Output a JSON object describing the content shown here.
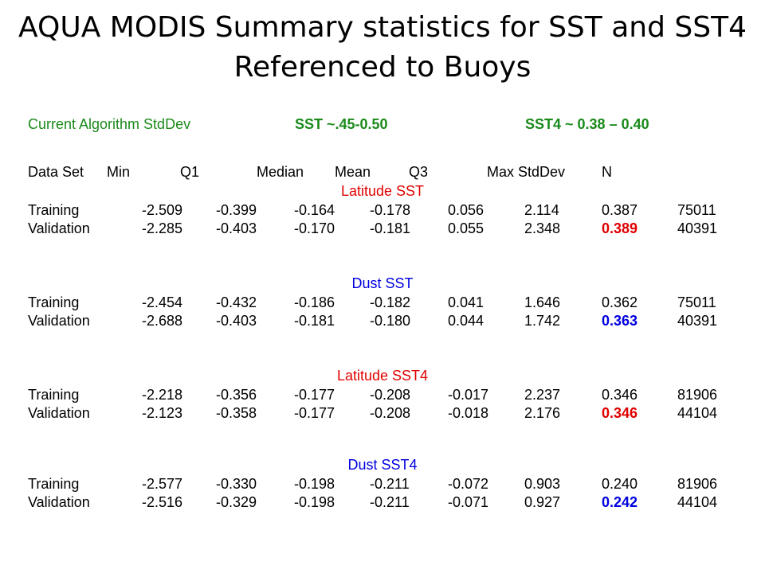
{
  "title": {
    "line1": "AQUA MODIS Summary statistics for SST and SST4",
    "line2": "Referenced to Buoys"
  },
  "algorithm": {
    "label": "Current Algorithm StdDev",
    "sst": "SST ~.45-0.50",
    "sst4": "SST4 ~ 0.38 – 0.40"
  },
  "headers": [
    "Data Set",
    "Min",
    "Q1",
    "Median",
    "Mean",
    "Q3",
    "Max",
    "StdDev",
    "N"
  ],
  "sections": [
    {
      "title": "Latitude SST",
      "color": "#e00000",
      "rows": [
        [
          "Training",
          "-2.509",
          "-0.399",
          "-0.164",
          "-0.178",
          "0.056",
          "2.114",
          "0.387",
          "75011"
        ],
        [
          "Validation",
          "-2.285",
          "-0.403",
          "-0.170",
          "-0.181",
          "0.055",
          "2.348",
          "0.389",
          "40391"
        ]
      ]
    },
    {
      "title": "Dust SST",
      "color": "#0000e0",
      "rows": [
        [
          "Training",
          "-2.454",
          "-0.432",
          "-0.186",
          "-0.182",
          "0.041",
          "1.646",
          "0.362",
          "75011"
        ],
        [
          "Validation",
          "-2.688",
          "-0.403",
          "-0.181",
          "-0.180",
          "0.044",
          "1.742",
          "0.363",
          "40391"
        ]
      ]
    },
    {
      "title": "Latitude SST4",
      "color": "#e00000",
      "rows": [
        [
          "Training",
          "-2.218",
          "-0.356",
          "-0.177",
          "-0.208",
          "-0.017",
          "2.237",
          "0.346",
          "81906"
        ],
        [
          "Validation",
          "-2.123",
          "-0.358",
          "-0.177",
          "-0.208",
          "-0.018",
          "2.176",
          "0.346",
          "44104"
        ]
      ]
    },
    {
      "title": "Dust SST4",
      "color": "#0000e0",
      "rows": [
        [
          "Training",
          "-2.577",
          "-0.330",
          "-0.198",
          "-0.211",
          "-0.072",
          "0.903",
          "0.240",
          "81906"
        ],
        [
          "Validation",
          "-2.516",
          "-0.329",
          "-0.198",
          "-0.211",
          "-0.071",
          "0.927",
          "0.242",
          "44104"
        ]
      ]
    }
  ]
}
